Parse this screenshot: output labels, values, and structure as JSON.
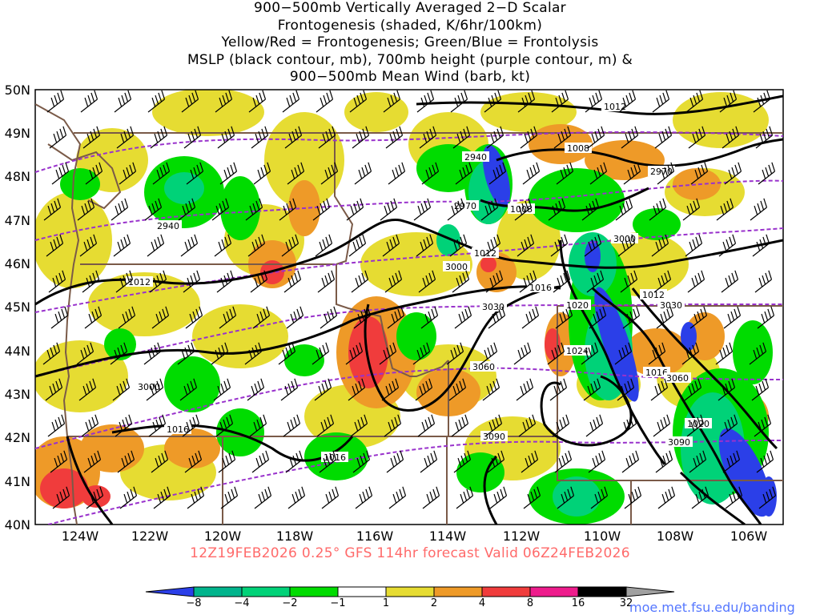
{
  "title_lines": [
    "900−500mb Vertically Averaged 2−D Scalar",
    "Frontogenesis (shaded, K/6hr/100km)",
    "Yellow/Red = Frontogenesis;  Green/Blue = Frontolysis",
    "MSLP (black contour, mb), 700mb height (purple contour, m) &",
    "900−500mb Mean Wind (barb, kt)"
  ],
  "lat_labels": [
    "50N",
    "49N",
    "48N",
    "47N",
    "46N",
    "45N",
    "44N",
    "43N",
    "42N",
    "41N",
    "40N"
  ],
  "lon_labels": [
    "124W",
    "122W",
    "120W",
    "118W",
    "116W",
    "114W",
    "112W",
    "110W",
    "108W",
    "106W"
  ],
  "mslp_labels": [
    "1012",
    "1008",
    "1008",
    "1012",
    "1012",
    "1016",
    "1020",
    "1024",
    "1016",
    "1020",
    "1012",
    "1016",
    "1016"
  ],
  "height_labels": [
    "2940",
    "2940",
    "2970",
    "2970",
    "3000",
    "3000",
    "3030",
    "3030",
    "3060",
    "3060",
    "3000",
    "3090",
    "3090"
  ],
  "valid_text": "12Z19FEB2026 0.25° GFS 114hr forecast Valid 06Z24FEB2026",
  "colorbar": {
    "labels": [
      "−8",
      "−4",
      "−2",
      "−1",
      "1",
      "2",
      "4",
      "8",
      "16",
      "32"
    ],
    "colors": [
      "#2b3fe8",
      "#00b48c",
      "#00d278",
      "#00dc00",
      "#ffffff",
      "#e6dc32",
      "#ee9a28",
      "#f03c3c",
      "#ee1c8c",
      "#000000",
      "#a0a0a0"
    ]
  },
  "colors": {
    "mslp": "#000000",
    "height": "#9932cc",
    "borders": "#7a5a48",
    "frontogenesis_weak": "#e6dc32",
    "frontogenesis_mod": "#ee9a28",
    "frontogenesis_strong": "#f03c3c",
    "frontolysis_weak": "#00dc00",
    "frontolysis_mod": "#00d278",
    "frontolysis_strong": "#2b3fe8"
  },
  "credit": "moe.met.fsu.edu/banding"
}
